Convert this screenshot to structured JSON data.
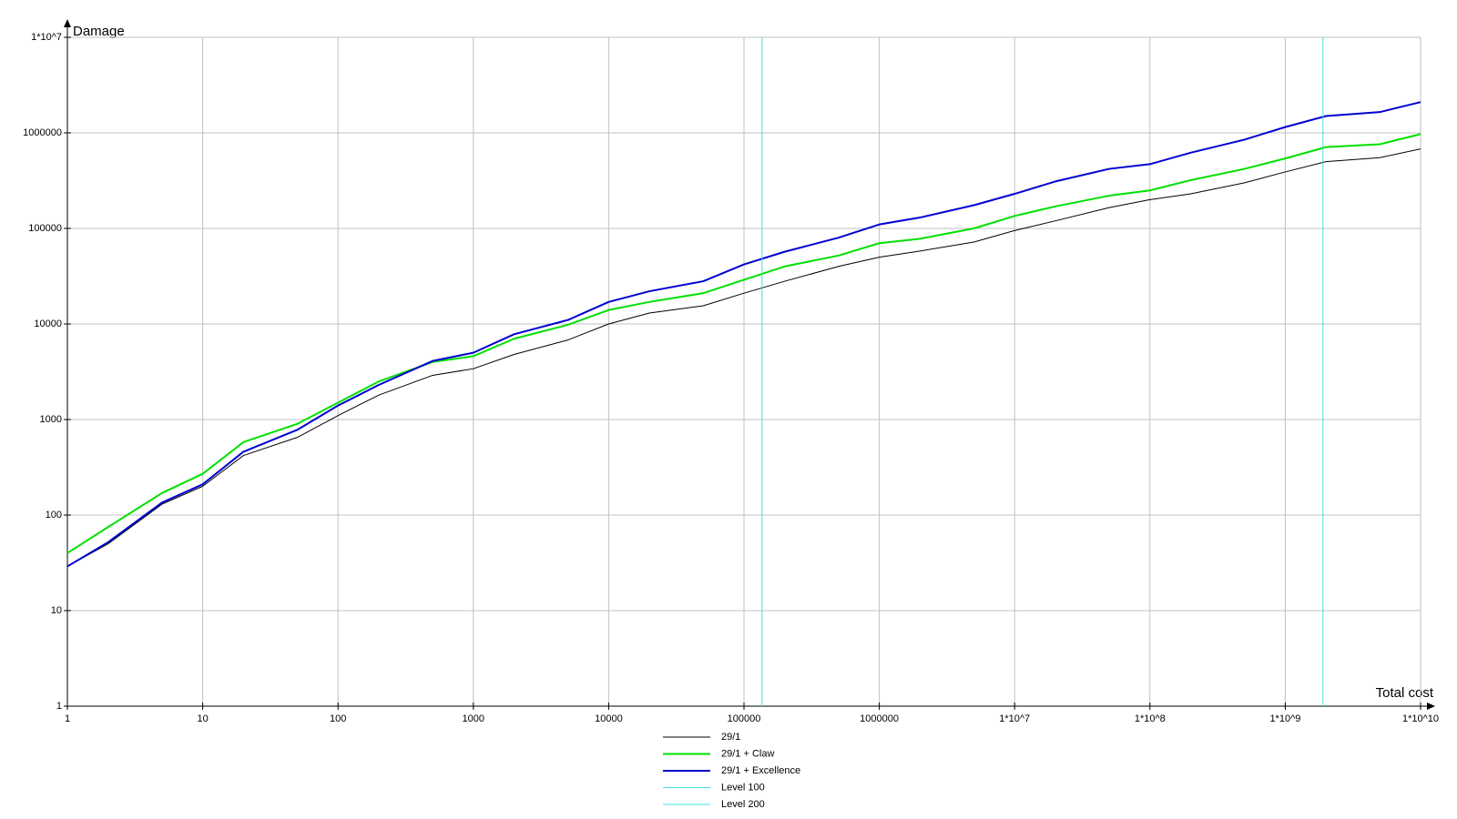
{
  "chart_data": {
    "type": "line",
    "y_label": "Damage",
    "x_label": "Total cost",
    "log_x": true,
    "log_y": true,
    "grid": true,
    "legend": "bottom",
    "xlim": [
      1,
      10000000000
    ],
    "ylim": [
      1,
      10000000
    ],
    "xticks": [
      1,
      10,
      100,
      1000,
      10000,
      100000,
      1000000,
      {
        "value": 10000000,
        "label": "1*10^7"
      },
      {
        "value": 100000000,
        "label": "1*10^8"
      },
      {
        "value": 1000000000,
        "label": "1*10^9"
      },
      {
        "value": 10000000000,
        "label": "1*10^10"
      }
    ],
    "yticks": [
      1,
      10,
      100,
      1000,
      10000,
      100000,
      1000000,
      {
        "value": 10000000,
        "label": "1*10^7"
      }
    ],
    "x": [
      1,
      2,
      5,
      10,
      20,
      50,
      100,
      200,
      500,
      1000,
      2000,
      5000,
      10000,
      20000,
      50000,
      100000,
      200000,
      500000,
      1000000,
      2000000,
      5000000,
      10000000,
      20000000,
      50000000,
      100000000,
      200000000,
      500000000,
      1000000000,
      2000000000,
      5000000000,
      10000000000
    ],
    "series": [
      {
        "name": "29/1",
        "color": "#000000",
        "width": 1,
        "values": [
          29,
          50,
          130,
          200,
          420,
          650,
          1100,
          1800,
          2900,
          3400,
          4800,
          6800,
          10000,
          13000,
          15500,
          21000,
          28000,
          40000,
          50000,
          58000,
          72000,
          95000,
          120000,
          165000,
          200000,
          230000,
          300000,
          390000,
          500000,
          550000,
          680000
        ]
      },
      {
        "name": "29/1 + Claw",
        "color": "#00e000",
        "width": 2,
        "values": [
          40,
          75,
          170,
          270,
          580,
          900,
          1500,
          2500,
          4000,
          4600,
          7000,
          9800,
          14000,
          17000,
          21000,
          29000,
          40000,
          52000,
          70000,
          78000,
          100000,
          135000,
          170000,
          220000,
          250000,
          320000,
          420000,
          540000,
          710000,
          760000,
          970000
        ]
      },
      {
        "name": "29/1 + Excellence",
        "color": "#0000d0",
        "width": 2,
        "values": [
          29,
          52,
          135,
          210,
          460,
          780,
          1400,
          2300,
          4100,
          5000,
          7800,
          11000,
          17000,
          22000,
          28000,
          42000,
          57000,
          80000,
          110000,
          130000,
          175000,
          230000,
          310000,
          420000,
          470000,
          620000,
          850000,
          1150000,
          1500000,
          1650000,
          2100000
        ]
      },
      {
        "name": "Level 100",
        "color": "#40e0e0",
        "width": 1,
        "vertical_x": 136000
      },
      {
        "name": "Level 200",
        "color": "#40e0e0",
        "width": 1,
        "vertical_x": 1900000000
      }
    ]
  }
}
